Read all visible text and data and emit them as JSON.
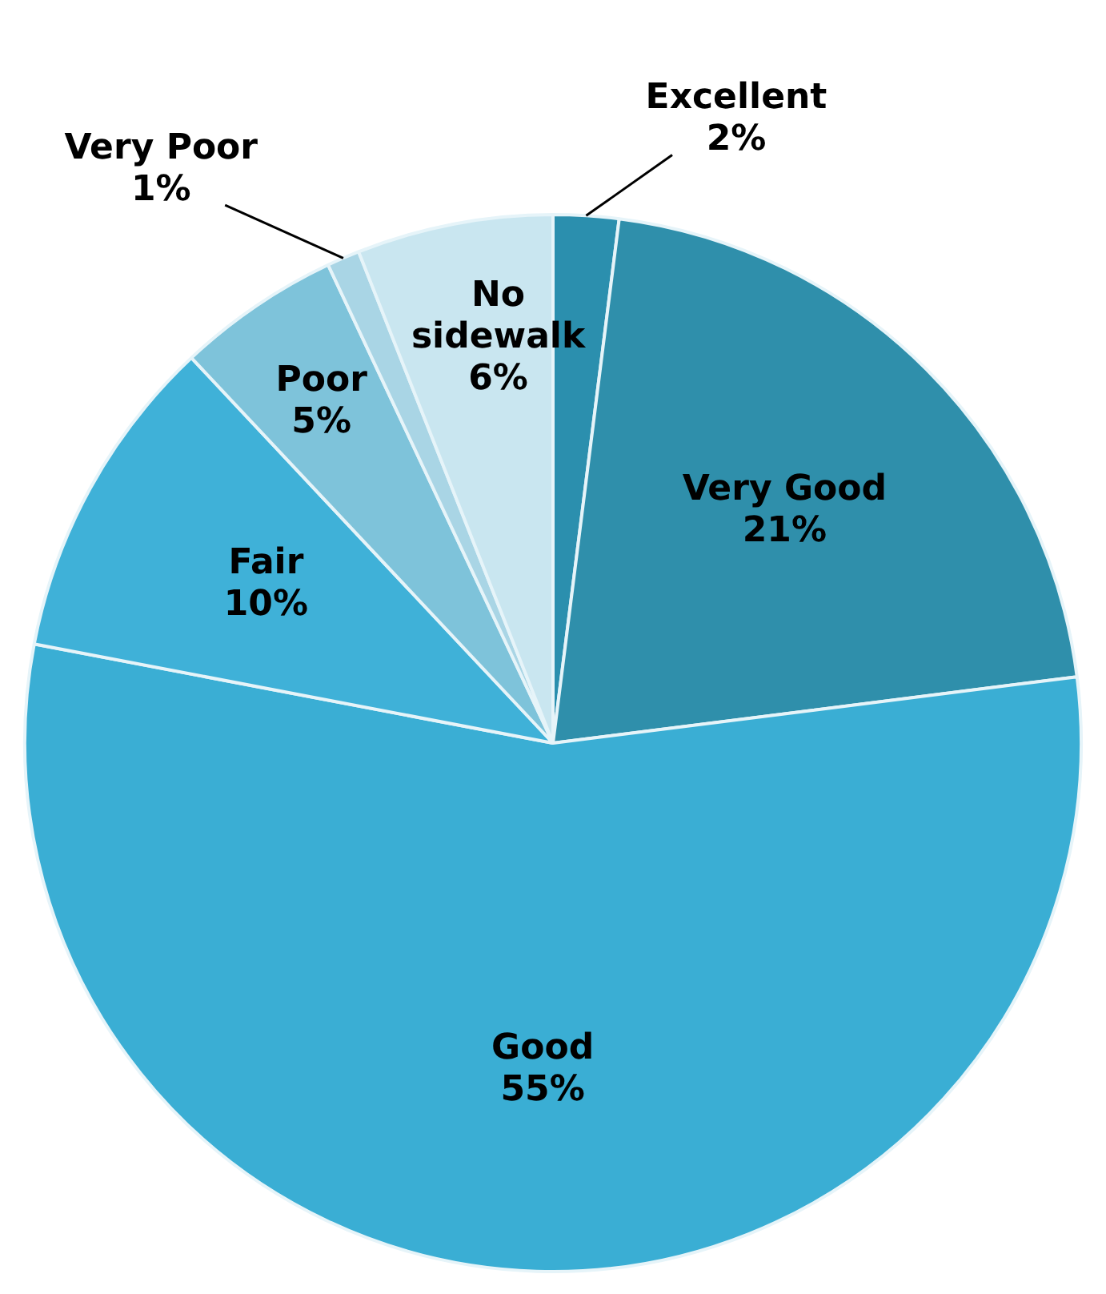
{
  "chart_data": {
    "type": "pie",
    "categories": [
      "Excellent",
      "Very Good",
      "Good",
      "Fair",
      "Poor",
      "Very Poor",
      "No sidewalk"
    ],
    "values": [
      2,
      21,
      55,
      10,
      5,
      1,
      6
    ],
    "colors": [
      "#2b8fae",
      "#2f8fab",
      "#3aaed4",
      "#3fb1d8",
      "#7ec3da",
      "#a9d5e5",
      "#c9e6f0"
    ],
    "value_labels": [
      "2%",
      "21%",
      "55%",
      "10%",
      "5%",
      "1%",
      "6%"
    ],
    "legend": false
  }
}
